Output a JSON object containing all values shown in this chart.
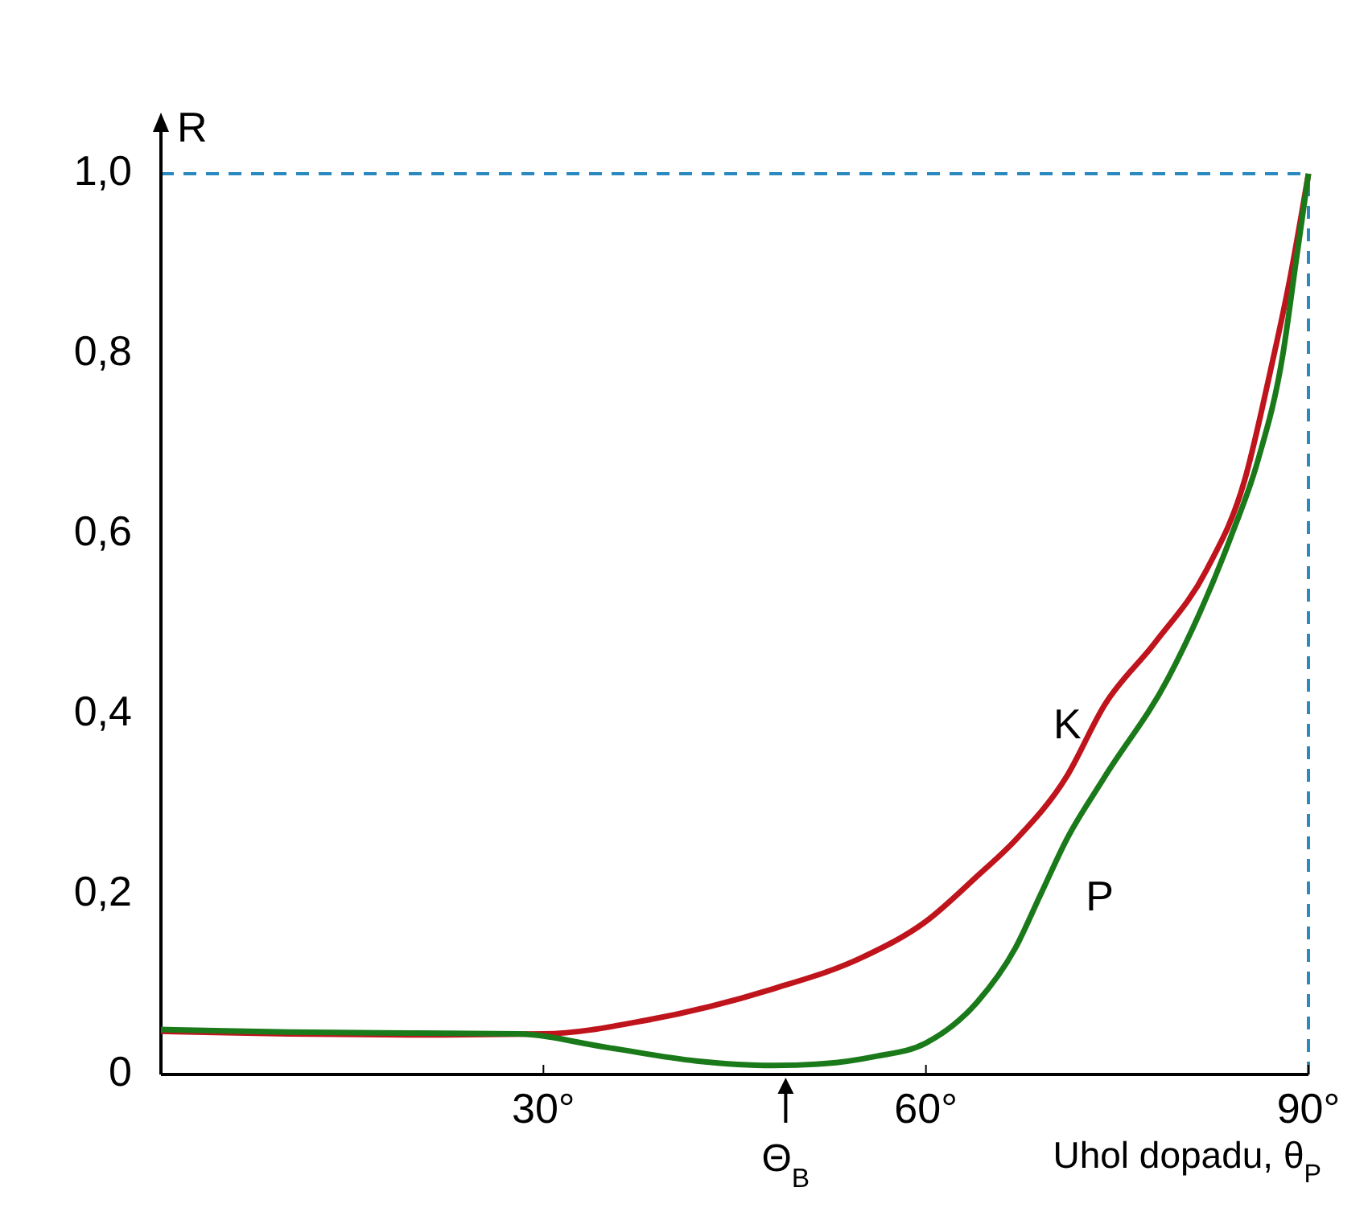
{
  "chart_data": {
    "type": "line",
    "ylabel": "R",
    "xlabel": "Uhol dopadu, θ$_{P}$",
    "xlim": [
      0,
      90
    ],
    "ylim": [
      0,
      1
    ],
    "xticks": [
      {
        "value": 30,
        "label": "30°"
      },
      {
        "value": 60,
        "label": "60°"
      },
      {
        "value": 90,
        "label": "90°"
      }
    ],
    "yticks": [
      {
        "value": 0,
        "label": "0"
      },
      {
        "value": 0.2,
        "label": "0,2"
      },
      {
        "value": 0.4,
        "label": "0,4"
      },
      {
        "value": 0.6,
        "label": "0,6"
      },
      {
        "value": 0.8,
        "label": "0,8"
      },
      {
        "value": 1,
        "label": "1,0"
      }
    ],
    "series": [
      {
        "name": "K",
        "color": "#c0141c",
        "x": [
          0,
          10,
          20,
          30,
          38,
          48,
          55,
          60,
          64,
          67,
          71,
          74,
          78,
          82,
          85,
          87,
          88.5,
          90
        ],
        "values": [
          0.048,
          0.045,
          0.044,
          0.045,
          0.06,
          0.095,
          0.13,
          0.17,
          0.22,
          0.26,
          0.33,
          0.41,
          0.48,
          0.56,
          0.66,
          0.78,
          0.88,
          1.0
        ]
      },
      {
        "name": "P",
        "color": "#1a7a1a",
        "x": [
          0,
          10,
          20,
          28,
          35,
          42,
          48,
          52,
          56,
          60,
          64,
          67,
          69,
          71,
          74,
          79,
          84,
          86,
          88,
          89,
          90
        ],
        "values": [
          0.05,
          0.047,
          0.046,
          0.045,
          0.03,
          0.015,
          0.01,
          0.012,
          0.02,
          0.035,
          0.08,
          0.14,
          0.2,
          0.26,
          0.33,
          0.44,
          0.6,
          0.68,
          0.8,
          0.9,
          1.0
        ]
      }
    ],
    "ref_lines": [
      {
        "axis": "y",
        "value": 1,
        "color": "#2a8ac0",
        "line_style": "dashed"
      },
      {
        "axis": "x",
        "value": 90,
        "color": "#2a8ac0",
        "line_style": "dashed"
      }
    ],
    "annotations": [
      {
        "text": "Θ$_{B}$",
        "x": 49,
        "y": 0
      }
    ],
    "grid": false,
    "marker": "none",
    "line_style": "solid"
  }
}
